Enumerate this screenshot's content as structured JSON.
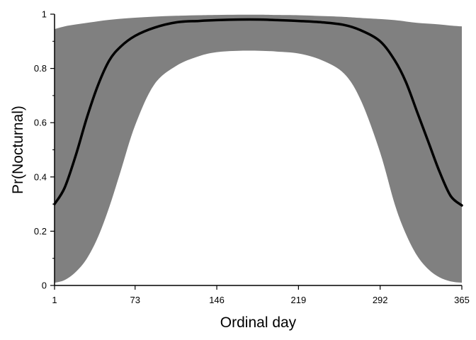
{
  "chart_data": {
    "type": "area",
    "title": "",
    "xlabel": "Ordinal day",
    "ylabel": "Pr(Nocturnal)",
    "xlim": [
      1,
      365
    ],
    "ylim": [
      0,
      1
    ],
    "x_ticks": [
      1,
      73,
      146,
      219,
      292,
      365
    ],
    "y_ticks": [
      0,
      0.2,
      0.4,
      0.6,
      0.8,
      1
    ],
    "y_tick_labels": [
      "0",
      "0.2",
      "0.4",
      "0.6",
      "0.8",
      "1"
    ],
    "y_minor_ticks": [
      0.1,
      0.3,
      0.5,
      0.7,
      0.9
    ],
    "grid": false,
    "legend": "none",
    "colors": {
      "band": "#808080",
      "line": "#000000"
    },
    "series": [
      {
        "kind": "line",
        "x": [
          1,
          10,
          20,
          30,
          40,
          50,
          60,
          73,
          90,
          110,
          130,
          146,
          165,
          185,
          200,
          219,
          240,
          260,
          275,
          292,
          305,
          315,
          325,
          335,
          345,
          355,
          365
        ],
        "y": [
          0.3,
          0.36,
          0.48,
          0.62,
          0.74,
          0.83,
          0.88,
          0.92,
          0.95,
          0.97,
          0.975,
          0.978,
          0.98,
          0.98,
          0.978,
          0.975,
          0.97,
          0.96,
          0.94,
          0.9,
          0.83,
          0.75,
          0.64,
          0.53,
          0.42,
          0.33,
          0.295
        ]
      },
      {
        "kind": "band",
        "x": [
          1,
          10,
          20,
          30,
          40,
          50,
          60,
          73,
          90,
          110,
          130,
          146,
          165,
          185,
          200,
          219,
          240,
          260,
          275,
          292,
          305,
          315,
          325,
          335,
          345,
          355,
          365
        ],
        "lower": [
          0.01,
          0.02,
          0.05,
          0.1,
          0.18,
          0.29,
          0.42,
          0.59,
          0.74,
          0.81,
          0.845,
          0.86,
          0.865,
          0.865,
          0.862,
          0.855,
          0.83,
          0.78,
          0.68,
          0.49,
          0.3,
          0.19,
          0.11,
          0.06,
          0.03,
          0.015,
          0.01
        ],
        "upper": [
          0.945,
          0.955,
          0.962,
          0.968,
          0.974,
          0.979,
          0.983,
          0.987,
          0.991,
          0.994,
          0.996,
          0.997,
          0.998,
          0.998,
          0.997,
          0.996,
          0.993,
          0.99,
          0.986,
          0.982,
          0.978,
          0.973,
          0.968,
          0.965,
          0.962,
          0.958,
          0.955
        ]
      }
    ]
  }
}
